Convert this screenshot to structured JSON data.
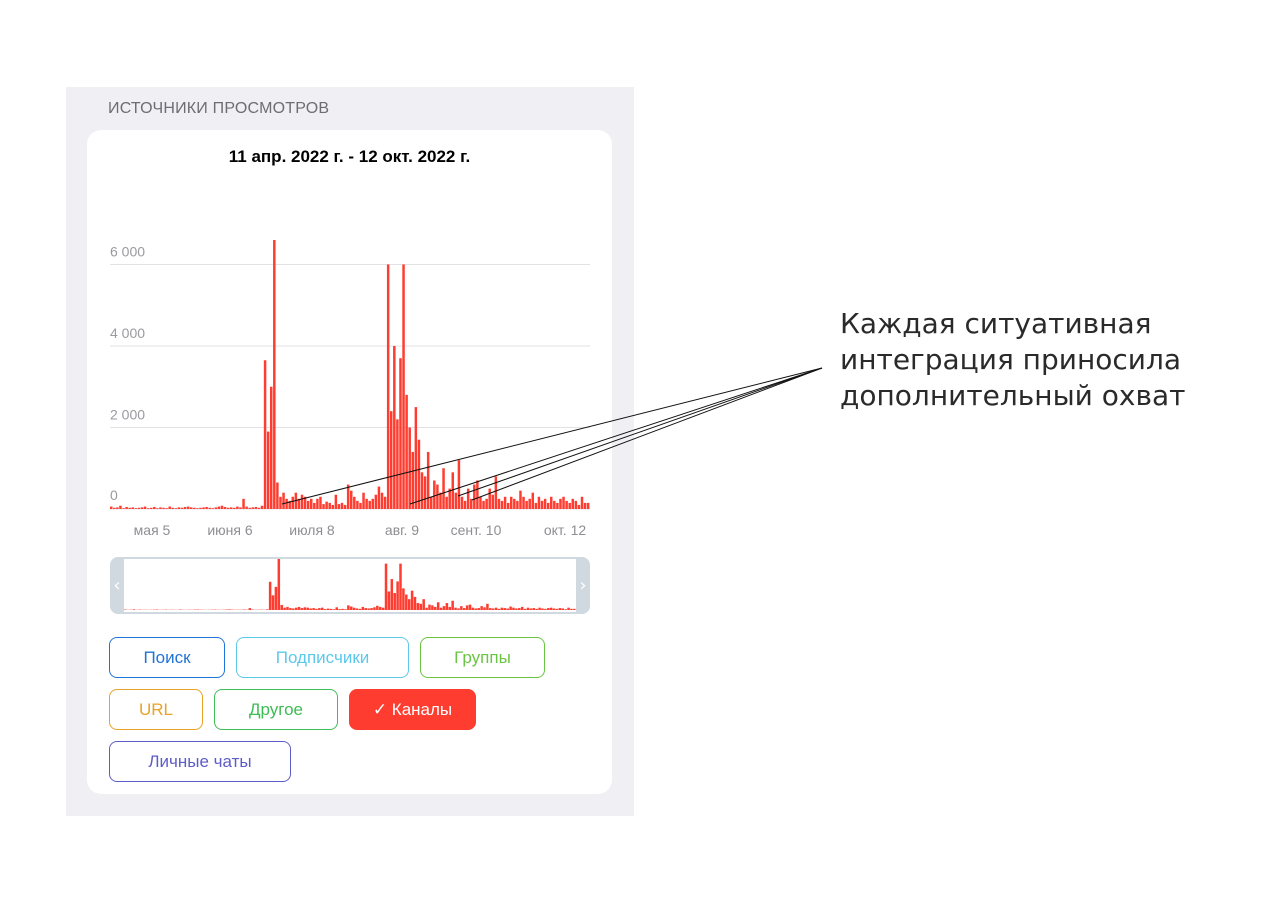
{
  "section_title": "ИСТОЧНИКИ ПРОСМОТРОВ",
  "date_range": "11 апр. 2022 г. - 12 окт. 2022 г.",
  "annotation": {
    "lines": [
      "Каждая ситуативная",
      "интеграция приносила",
      "дополнительный охват"
    ]
  },
  "legend_buttons": [
    {
      "label": "Поиск",
      "color": "#1f74d8",
      "selected": false
    },
    {
      "label": "Подписчики",
      "color": "#5cc8ea",
      "selected": false
    },
    {
      "label": "Группы",
      "color": "#6ac544",
      "selected": false
    },
    {
      "label": "URL",
      "color": "#e8a227",
      "selected": false
    },
    {
      "label": "Другое",
      "color": "#3ebc55",
      "selected": false
    },
    {
      "label": "✓ Каналы",
      "color": "#fe3c30",
      "selected": true
    },
    {
      "label": "Личные чаты",
      "color": "#5e5cc6",
      "selected": false
    }
  ],
  "navigator": {
    "left_handle": "‹",
    "right_handle": "›"
  },
  "chart_data": {
    "type": "bar",
    "title": "11 апр. 2022 г. - 12 окт. 2022 г.",
    "series": [
      {
        "name": "Каналы",
        "color": "#fe3c30"
      }
    ],
    "x_tick_labels": [
      "мая 5",
      "июня 6",
      "июля 8",
      "авг. 9",
      "сент. 10",
      "окт. 12"
    ],
    "y_tick_labels": [
      "0",
      "2 000",
      "4 000",
      "6 000"
    ],
    "y_ticks": [
      0,
      2000,
      4000,
      6000
    ],
    "ylim": [
      0,
      6600
    ],
    "grid": true,
    "x_start": "2022-04-11",
    "values": [
      60,
      30,
      40,
      80,
      20,
      50,
      30,
      40,
      20,
      30,
      40,
      60,
      20,
      30,
      50,
      20,
      40,
      30,
      20,
      60,
      30,
      20,
      40,
      30,
      50,
      60,
      40,
      30,
      20,
      30,
      40,
      50,
      30,
      20,
      40,
      60,
      80,
      50,
      30,
      40,
      30,
      60,
      40,
      250,
      60,
      30,
      40,
      50,
      30,
      80,
      3650,
      1900,
      3000,
      6600,
      650,
      300,
      400,
      250,
      200,
      300,
      400,
      250,
      350,
      300,
      200,
      250,
      150,
      250,
      300,
      120,
      180,
      150,
      100,
      350,
      120,
      150,
      100,
      600,
      450,
      300,
      200,
      150,
      400,
      250,
      200,
      250,
      350,
      550,
      400,
      300,
      6000,
      2400,
      4000,
      2200,
      3700,
      6000,
      2800,
      2000,
      1400,
      2500,
      1700,
      900,
      800,
      1400,
      300,
      700,
      600,
      400,
      1000,
      300,
      500,
      900,
      400,
      1200,
      300,
      200,
      500,
      250,
      600,
      700,
      300,
      200,
      250,
      500,
      350,
      800,
      250,
      200,
      300,
      150,
      300,
      250,
      200,
      450,
      300,
      200,
      250,
      400,
      150,
      300,
      200,
      250,
      150,
      300,
      200,
      150,
      250,
      300,
      200,
      150,
      250,
      200,
      100,
      300,
      150,
      150
    ]
  }
}
